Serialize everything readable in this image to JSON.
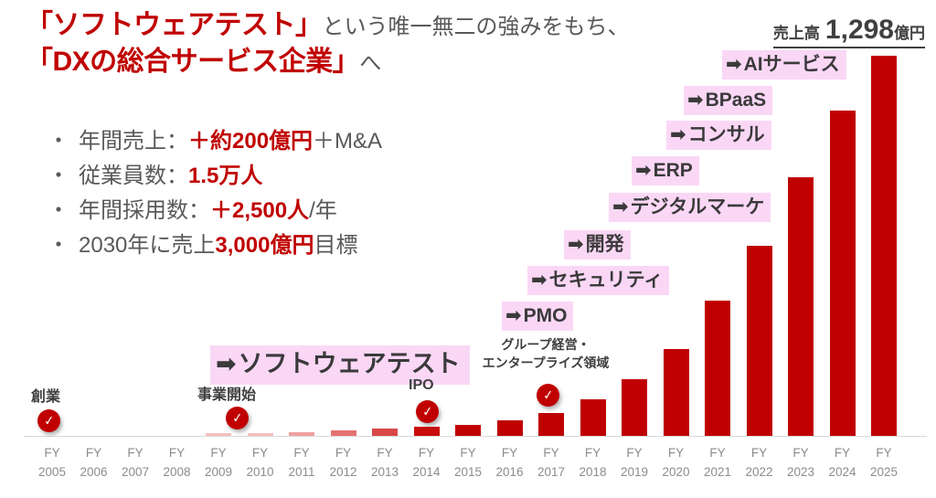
{
  "header": {
    "title_line1": {
      "red": "「ソフトウェアテスト」",
      "gray": "という唯一無二の強みをもち、"
    },
    "title_line2": {
      "red": "「DXの総合サービス企業」",
      "gray": "へ"
    }
  },
  "revenue_badge": {
    "label": "売上高",
    "value": "1,298",
    "unit": "億円"
  },
  "bullets": [
    {
      "dot": "・",
      "parts": [
        {
          "t": "年間売上："
        },
        {
          "t": "＋約200億円",
          "red": true
        },
        {
          "t": "＋M&A"
        }
      ]
    },
    {
      "dot": "・",
      "parts": [
        {
          "t": "従業員数："
        },
        {
          "t": "1.5万人",
          "red": true
        },
        {
          "t": ""
        }
      ]
    },
    {
      "dot": "・",
      "parts": [
        {
          "t": "年間採用数："
        },
        {
          "t": "＋2,500人",
          "red": true
        },
        {
          "t": "/年"
        }
      ]
    },
    {
      "dot": "・",
      "parts": [
        {
          "t": "2030年に売上"
        },
        {
          "t": "3,000億円",
          "red": true
        },
        {
          "t": "目標"
        }
      ]
    }
  ],
  "chart_data": {
    "type": "bar",
    "title": "売上高 1,298億円",
    "x_prefix": "FY",
    "categories": [
      "2005",
      "2006",
      "2007",
      "2008",
      "2009",
      "2010",
      "2011",
      "2012",
      "2013",
      "2014",
      "2015",
      "2016",
      "2017",
      "2018",
      "2019",
      "2020",
      "2021",
      "2022",
      "2023",
      "2024",
      "2025"
    ],
    "values": [
      1,
      1,
      1,
      1,
      9,
      9,
      13,
      19,
      26,
      31,
      38,
      54,
      79,
      125,
      193,
      296,
      461,
      648,
      882,
      1110,
      1298
    ],
    "unit": "億円",
    "ylim": [
      0,
      1350
    ],
    "grid": false,
    "legend": "none",
    "bar_color_default": "#C00000",
    "bar_colors": [
      "#F6C6C6",
      "#F6C6C6",
      "#F6C6C6",
      "#F6C6C6",
      "#F5BFBF",
      "#F5BFBF",
      "#F0A0A0",
      "#E57272",
      "#D94747",
      "#C90B0B",
      "#C00000",
      "#C00000",
      "#C00000",
      "#C00000",
      "#C00000",
      "#C00000",
      "#C00000",
      "#C00000",
      "#C00000",
      "#C00000",
      "#C00000"
    ],
    "annotations": {
      "arrow_glyph": "➡",
      "check_glyph": "✓",
      "highlight_color": "#FBD7F6",
      "services": [
        {
          "label": "AIサービス"
        },
        {
          "label": "BPaaS"
        },
        {
          "label": "コンサル"
        },
        {
          "label": "ERP"
        },
        {
          "label": "デジタルマーケ"
        },
        {
          "label": "開発"
        },
        {
          "label": "セキュリティ"
        },
        {
          "label": "PMO"
        },
        {
          "label": "ソフトウェアテスト"
        }
      ],
      "milestones": [
        {
          "label": "創業",
          "at": "FY2005"
        },
        {
          "label": "事業開始",
          "at": "FY2009"
        },
        {
          "label": "IPO",
          "at": "FY2014"
        },
        {
          "label": "グループ経営・",
          "label2": "エンタープライズ領域",
          "at": "FY2017"
        }
      ]
    }
  }
}
